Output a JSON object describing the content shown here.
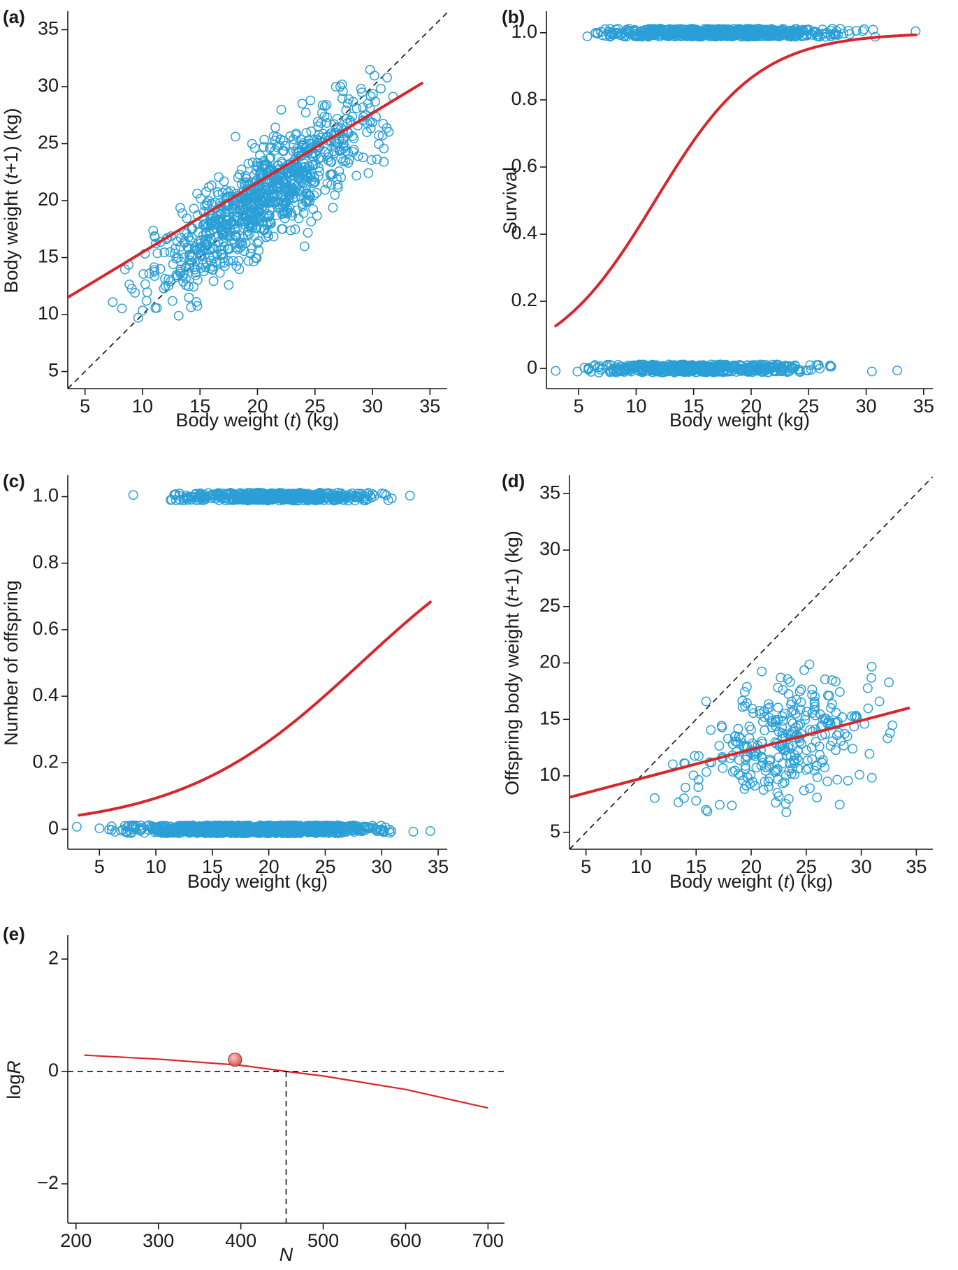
{
  "figure": {
    "colors": {
      "points": "#2a9fd6",
      "fit": "#d7262c",
      "axis": "#1a1a1a",
      "marker": "#d9534f"
    }
  },
  "chart_data": [
    {
      "id": "a",
      "panel_label": "(a)",
      "type": "scatter",
      "xlabel_parts": [
        "Body weight (",
        "t",
        ") (kg)"
      ],
      "ylabel_parts": [
        "Body weight (",
        "t",
        "+1) (kg)"
      ],
      "xlim": [
        3.5,
        36.5
      ],
      "ylim": [
        3.5,
        36.5
      ],
      "xticks": [
        5,
        10,
        15,
        20,
        25,
        30,
        35
      ],
      "yticks": [
        5,
        10,
        15,
        20,
        25,
        30,
        35
      ],
      "xtick_labels": [
        "5",
        "10",
        "15",
        "20",
        "25",
        "30",
        "35"
      ],
      "ytick_labels": [
        "5",
        "10",
        "15",
        "20",
        "25",
        "30",
        "35"
      ],
      "series": [
        {
          "name": "observations",
          "kind": "points",
          "n": 900,
          "x_mean": 20.5,
          "x_sd": 4.6,
          "x_min": 7,
          "x_max": 32,
          "relation": "linear",
          "intercept": 6.0,
          "slope": 0.7,
          "noise_sd": 2.2,
          "seed": 11
        },
        {
          "name": "fit",
          "kind": "line",
          "x": [
            3.5,
            34.3
          ],
          "y": [
            11.5,
            30.3
          ]
        },
        {
          "name": "1:1 line",
          "kind": "dashed",
          "x": [
            3.5,
            36.5
          ],
          "y": [
            3.5,
            36.5
          ]
        }
      ]
    },
    {
      "id": "b",
      "panel_label": "(b)",
      "type": "scatter",
      "xlabel_parts": [
        "Body weight (kg)"
      ],
      "ylabel_parts": [
        "Survival"
      ],
      "xlim": [
        2.2,
        35.8
      ],
      "ylim": [
        -0.06,
        1.06
      ],
      "xticks": [
        5,
        10,
        15,
        20,
        25,
        30,
        35
      ],
      "yticks": [
        0,
        0.2,
        0.4,
        0.6,
        0.8,
        1.0
      ],
      "xtick_labels": [
        "5",
        "10",
        "15",
        "20",
        "25",
        "30",
        "35"
      ],
      "ytick_labels": [
        "0",
        "0.2",
        "0.4",
        "0.6",
        "0.8",
        "1.0"
      ],
      "series": [
        {
          "name": "survived",
          "kind": "points",
          "n": 650,
          "x_mean": 17.0,
          "x_sd": 5.5,
          "x_min": 5.5,
          "x_max": 31,
          "relation": "band",
          "level": 1.0,
          "jitter": 0.012,
          "extra_x": [
            34.3
          ],
          "seed": 21
        },
        {
          "name": "died",
          "kind": "points",
          "n": 450,
          "x_mean": 15.5,
          "x_sd": 5.5,
          "x_min": 5.8,
          "x_max": 28,
          "relation": "band",
          "level": 0.0,
          "jitter": 0.012,
          "extra_x": [
            3.0,
            4.9,
            5.5,
            30.5,
            32.7
          ],
          "seed": 31
        },
        {
          "name": "fit",
          "kind": "logistic",
          "x_range": [
            3.0,
            34.3
          ],
          "b0": -2.6,
          "b1": 0.223,
          "ymin": 0,
          "ymax": 1
        }
      ]
    },
    {
      "id": "c",
      "panel_label": "(c)",
      "type": "scatter",
      "xlabel_parts": [
        "Body weight (kg)"
      ],
      "ylabel_parts": [
        "Number of offspring"
      ],
      "xlim": [
        2.2,
        35.8
      ],
      "ylim": [
        -0.06,
        1.06
      ],
      "xticks": [
        5,
        10,
        15,
        20,
        25,
        30,
        35
      ],
      "yticks": [
        0,
        0.2,
        0.4,
        0.6,
        0.8,
        1.0
      ],
      "xtick_labels": [
        "5",
        "10",
        "15",
        "20",
        "25",
        "30",
        "35"
      ],
      "ytick_labels": [
        "0",
        "0.2",
        "0.4",
        "0.6",
        "0.8",
        "1.0"
      ],
      "series": [
        {
          "name": "one offspring",
          "kind": "points",
          "n": 450,
          "x_mean": 21.0,
          "x_sd": 4.8,
          "x_min": 11,
          "x_max": 31,
          "relation": "band",
          "level": 1.0,
          "jitter": 0.012,
          "extra_x": [
            8.0,
            32.5
          ],
          "seed": 41
        },
        {
          "name": "no offspring",
          "kind": "points",
          "n": 950,
          "x_mean": 18.5,
          "x_sd": 5.5,
          "x_min": 5.8,
          "x_max": 31,
          "relation": "band",
          "level": 0.0,
          "jitter": 0.012,
          "extra_x": [
            3.0,
            5.0,
            32.8,
            34.3
          ],
          "seed": 51
        },
        {
          "name": "fit",
          "kind": "logistic",
          "x_range": [
            3.2,
            34.3
          ],
          "b0": -3.52,
          "b1": 0.125,
          "ymin": 0,
          "ymax": 1
        }
      ]
    },
    {
      "id": "d",
      "panel_label": "(d)",
      "type": "scatter",
      "xlabel_parts": [
        "Body weight (",
        "t",
        ") (kg)"
      ],
      "ylabel_parts": [
        "Offspring body weight (",
        "t",
        "+1) (kg)"
      ],
      "xlim": [
        3.5,
        36.5
      ],
      "ylim": [
        3.5,
        36.5
      ],
      "xticks": [
        5,
        10,
        15,
        20,
        25,
        30,
        35
      ],
      "yticks": [
        5,
        10,
        15,
        20,
        25,
        30,
        35
      ],
      "xtick_labels": [
        "5",
        "10",
        "15",
        "20",
        "25",
        "30",
        "35"
      ],
      "ytick_labels": [
        "5",
        "10",
        "15",
        "20",
        "25",
        "30",
        "35"
      ],
      "series": [
        {
          "name": "observations",
          "kind": "points",
          "n": 300,
          "x_mean": 22.5,
          "x_sd": 4.5,
          "x_min": 11,
          "x_max": 33,
          "relation": "linear",
          "intercept": 6.7,
          "slope": 0.27,
          "noise_sd": 2.6,
          "seed": 61
        },
        {
          "name": "fit",
          "kind": "line",
          "x": [
            3.5,
            34.3
          ],
          "y": [
            8.1,
            16.0
          ]
        },
        {
          "name": "1:1 line",
          "kind": "dashed",
          "x": [
            3.5,
            36.5
          ],
          "y": [
            3.5,
            36.5
          ]
        }
      ]
    },
    {
      "id": "e",
      "panel_label": "(e)",
      "type": "line",
      "xlabel_parts": [
        "",
        "N",
        ""
      ],
      "ylabel_parts": [
        "log",
        "R",
        ""
      ],
      "xlim": [
        190,
        720
      ],
      "ylim": [
        -2.7,
        2.4
      ],
      "xticks": [
        200,
        300,
        400,
        500,
        600,
        700
      ],
      "yticks": [
        -2,
        0,
        2
      ],
      "xtick_labels": [
        "200",
        "300",
        "400",
        "500",
        "600",
        "700"
      ],
      "ytick_labels": [
        "−2",
        "0",
        "2"
      ],
      "series": [
        {
          "name": "log R",
          "kind": "curve",
          "x": [
            210,
            300,
            400,
            455,
            500,
            600,
            700
          ],
          "y": [
            0.29,
            0.22,
            0.11,
            0.0,
            -0.08,
            -0.32,
            -0.65
          ]
        },
        {
          "name": "observed",
          "kind": "marker",
          "x": [
            393
          ],
          "y": [
            0.21
          ]
        },
        {
          "name": "zero line",
          "kind": "hline",
          "y": 0
        },
        {
          "name": "equilibrium N",
          "kind": "vline",
          "x": 455
        }
      ]
    }
  ]
}
